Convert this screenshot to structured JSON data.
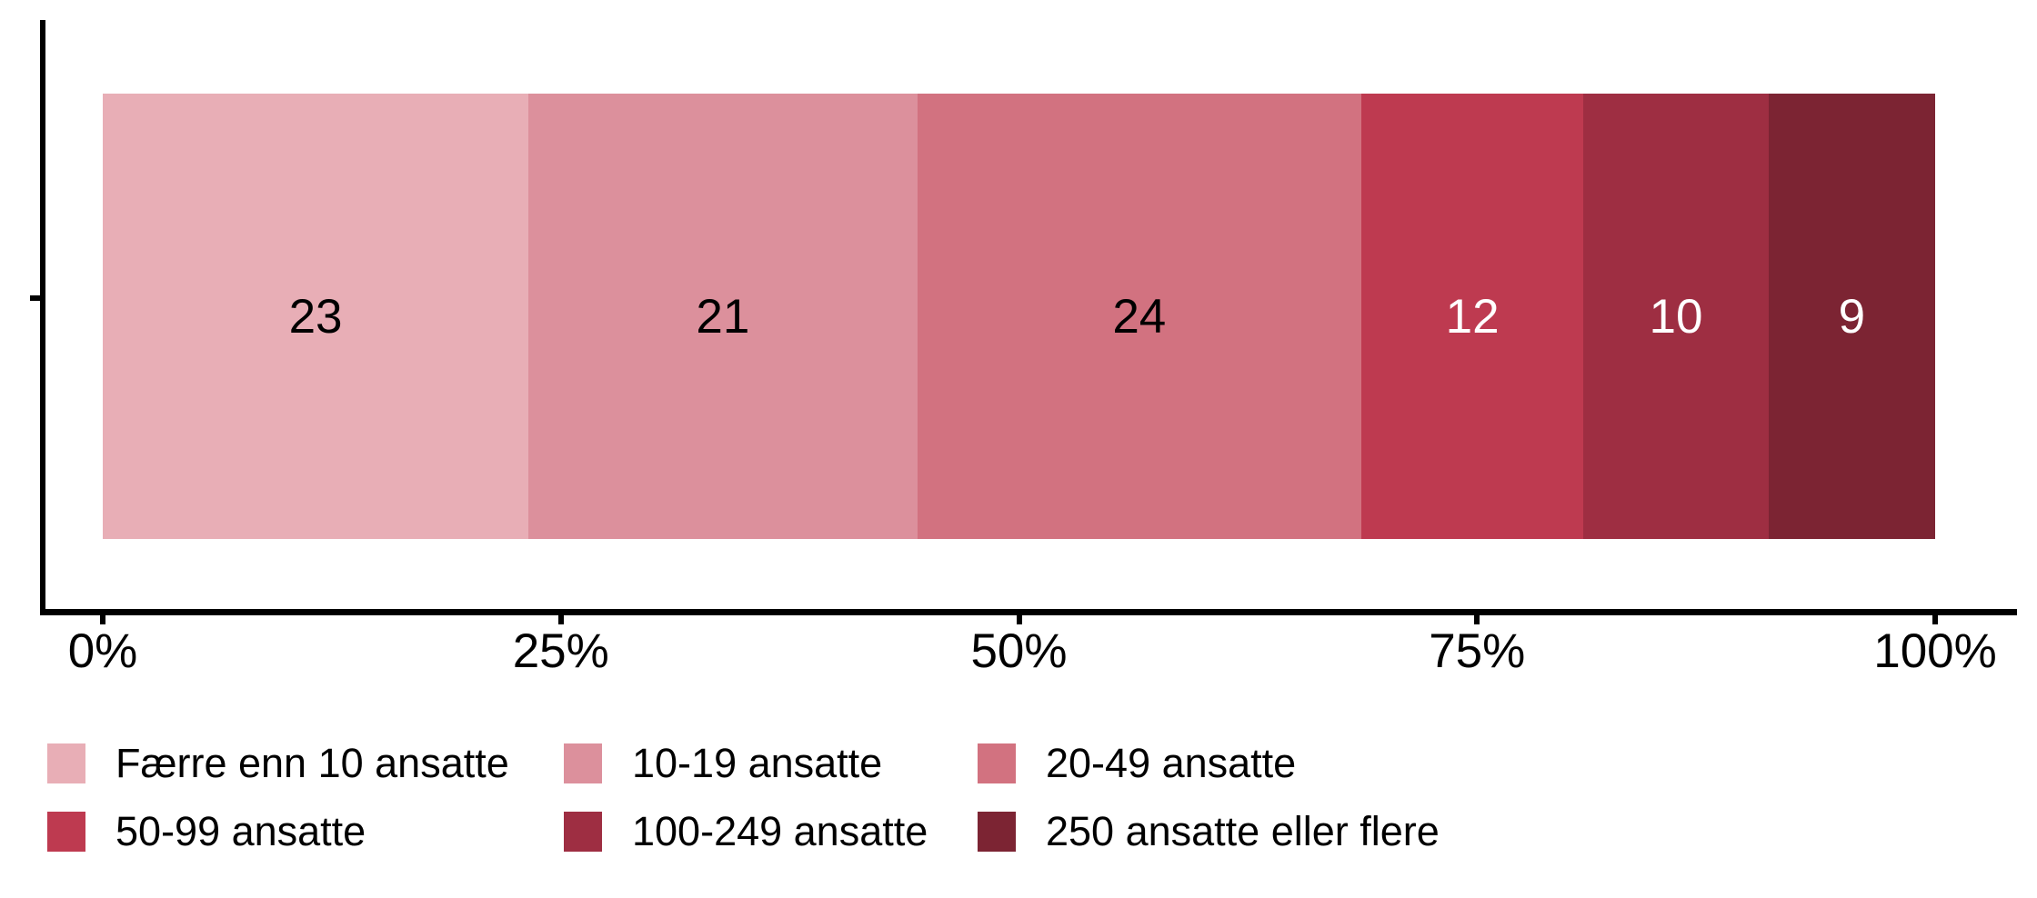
{
  "chart_data": {
    "type": "bar",
    "orientation": "horizontal",
    "stacked": true,
    "normalized_to_percent": true,
    "title": "",
    "xlabel": "",
    "ylabel": "",
    "axis_range": [
      0,
      100
    ],
    "x_tick_labels": [
      "0%",
      "25%",
      "50%",
      "75%",
      "100%"
    ],
    "x_tick_positions": [
      0,
      25,
      50,
      75,
      100
    ],
    "grid": "off",
    "legend_position": "bottom",
    "segments": [
      {
        "label": "Færre enn 10 ansatte",
        "value": 23,
        "color": "#E8AEB6",
        "text_color": "#000000"
      },
      {
        "label": "10-19 ansatte",
        "value": 21,
        "color": "#DC909C",
        "text_color": "#000000"
      },
      {
        "label": "20-49 ansatte",
        "value": 24,
        "color": "#D27280",
        "text_color": "#000000"
      },
      {
        "label": "50-99 ansatte",
        "value": 12,
        "color": "#BE3A50",
        "text_color": "#FFFFFF"
      },
      {
        "label": "100-249 ansatte",
        "value": 10,
        "color": "#9E2E42",
        "text_color": "#FFFFFF"
      },
      {
        "label": "250 ansatte eller flere",
        "value": 9,
        "color": "#7C2433",
        "text_color": "#FFFFFF"
      }
    ],
    "axis_color": "#000000",
    "label_color": "#000000"
  }
}
